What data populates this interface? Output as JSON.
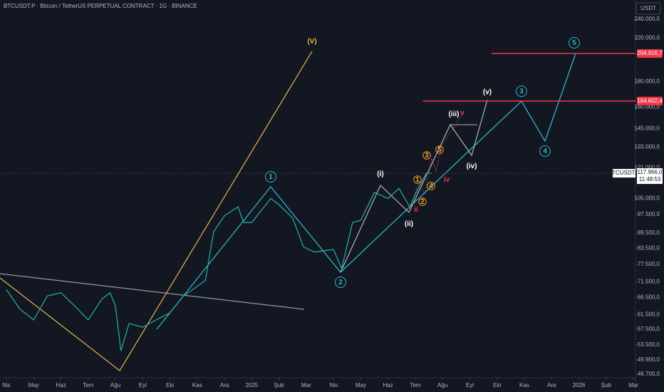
{
  "chart_data": {
    "type": "line",
    "title": "BTCUSDT.P · Bitcoin / TetherUS PERPETUAL CONTRACT · 1G · BINANCE",
    "currency": "USDT",
    "symbol": "BTCUSDT.P",
    "countdown": "11:48:53",
    "color": "#26a69a",
    "log_scale": true,
    "x": [
      0,
      0.5,
      1,
      1.5,
      2,
      2.5,
      3,
      3.5,
      3.8,
      4,
      4.2,
      4.5,
      5,
      5.5,
      6,
      6.5,
      7,
      7.3,
      7.6,
      8,
      8.5,
      8.7,
      9,
      9.7,
      10,
      10.5,
      10.9,
      11.3,
      12,
      12.3,
      12.7,
      13,
      13.5,
      14,
      14.4,
      14.8,
      15,
      15.4,
      15.6
    ],
    "values": [
      69000,
      63000,
      60000,
      67000,
      68000,
      64000,
      60000,
      66000,
      68000,
      64000,
      52000,
      59000,
      58000,
      60000,
      62000,
      67000,
      70000,
      72000,
      90000,
      97000,
      101000,
      94000,
      94000,
      105000,
      102000,
      96000,
      84000,
      82000,
      83000,
      76000,
      94000,
      95000,
      108000,
      105000,
      110000,
      101000,
      107000,
      118000,
      117966
    ],
    "last_price": {
      "value": 117966,
      "label": "117.966,0"
    },
    "levels": [
      {
        "value": 204916.7,
        "label": "204.916,7",
        "color": "#f23645"
      },
      {
        "value": 164602.4,
        "label": "164.602,4",
        "color": "#f23645"
      }
    ],
    "xlim": [
      0,
      23
    ],
    "ylim": [
      46700,
      240000
    ],
    "xticks": [
      {
        "value": 0,
        "label": "Nis"
      },
      {
        "value": 1,
        "label": "May"
      },
      {
        "value": 2,
        "label": "Haz"
      },
      {
        "value": 3,
        "label": "Tem"
      },
      {
        "value": 4,
        "label": "Ağu"
      },
      {
        "value": 5,
        "label": "Eyl"
      },
      {
        "value": 6,
        "label": "Eki"
      },
      {
        "value": 7,
        "label": "Kas"
      },
      {
        "value": 8,
        "label": "Ara"
      },
      {
        "value": 9,
        "label": "2025"
      },
      {
        "value": 10,
        "label": "Şub"
      },
      {
        "value": 11,
        "label": "Mar"
      },
      {
        "value": 12,
        "label": "Nis"
      },
      {
        "value": 13,
        "label": "May"
      },
      {
        "value": 14,
        "label": "Haz"
      },
      {
        "value": 15,
        "label": "Tem"
      },
      {
        "value": 16,
        "label": "Ağu"
      },
      {
        "value": 17,
        "label": "Eyl"
      },
      {
        "value": 18,
        "label": "Eki"
      },
      {
        "value": 19,
        "label": "Kas"
      },
      {
        "value": 20,
        "label": "Ara"
      },
      {
        "value": 21,
        "label": "2026"
      },
      {
        "value": 22,
        "label": "Şub"
      },
      {
        "value": 23,
        "label": "Mar"
      }
    ],
    "yticks": [
      {
        "value": 240000,
        "label": "240.000,0"
      },
      {
        "value": 220000,
        "label": "220.000,0"
      },
      {
        "value": 180000,
        "label": "180.000,0"
      },
      {
        "value": 160000,
        "label": "160.000,0"
      },
      {
        "value": 145000,
        "label": "145.000,0"
      },
      {
        "value": 133000,
        "label": "133.000,0"
      },
      {
        "value": 121000,
        "label": "121.000,0"
      },
      {
        "value": 105000,
        "label": "105.000,0"
      },
      {
        "value": 97500,
        "label": "97.500,0"
      },
      {
        "value": 89500,
        "label": "89.500,0"
      },
      {
        "value": 83500,
        "label": "83.500,0"
      },
      {
        "value": 77500,
        "label": "77.500,0"
      },
      {
        "value": 71500,
        "label": "71.500,0"
      },
      {
        "value": 66500,
        "label": "66.500,0"
      },
      {
        "value": 61500,
        "label": "61.500,0"
      },
      {
        "value": 57500,
        "label": "57.500,0"
      },
      {
        "value": 53500,
        "label": "53.500,0"
      },
      {
        "value": 49900,
        "label": "49.900,0"
      },
      {
        "value": 46700,
        "label": "46.700,0"
      }
    ],
    "annotations": [
      "(V)",
      "1",
      "2",
      "3",
      "4",
      "5",
      "(i)",
      "(ii)",
      "(iii)",
      "(iv)",
      "(v)",
      "1",
      "2",
      "3",
      "4",
      "5",
      "ii",
      "iv",
      "v"
    ]
  }
}
